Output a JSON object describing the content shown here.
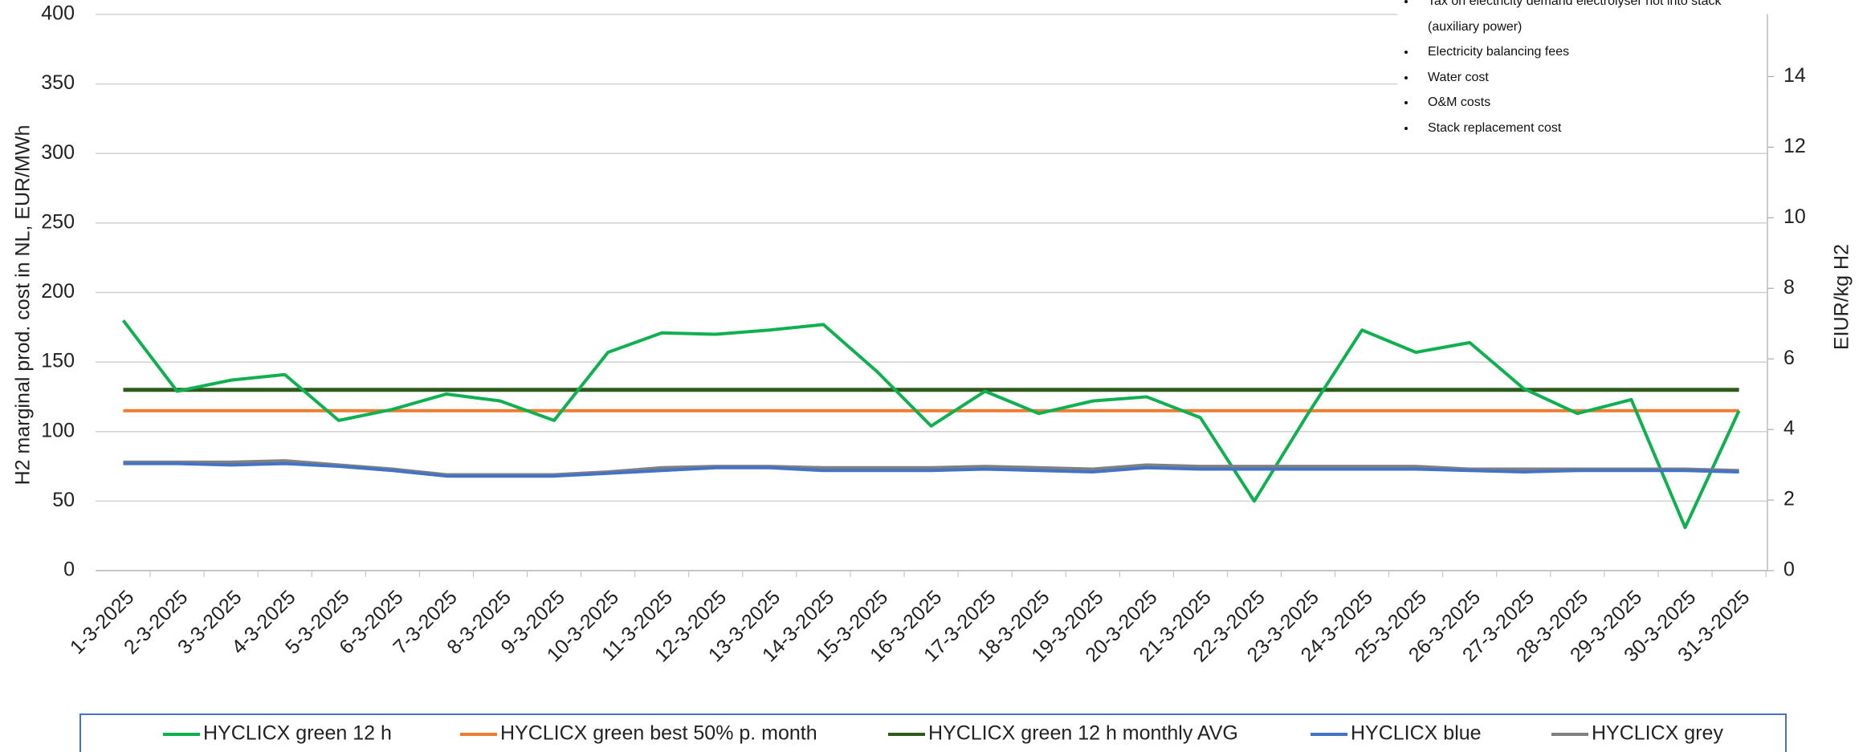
{
  "chart_data": {
    "type": "line",
    "y_label": "H2 marginal  prod. cost  in NL, EUR/MWh",
    "y2_label": "EIUR/kg H2",
    "categories": [
      "1-3-2025",
      "2-3-2025",
      "3-3-2025",
      "4-3-2025",
      "5-3-2025",
      "6-3-2025",
      "7-3-2025",
      "8-3-2025",
      "9-3-2025",
      "10-3-2025",
      "11-3-2025",
      "12-3-2025",
      "13-3-2025",
      "14-3-2025",
      "15-3-2025",
      "16-3-2025",
      "17-3-2025",
      "18-3-2025",
      "19-3-2025",
      "20-3-2025",
      "21-3-2025",
      "22-3-2025",
      "23-3-2025",
      "24-3-2025",
      "25-3-2025",
      "26-3-2025",
      "27-3-2025",
      "28-3-2025",
      "29-3-2025",
      "30-3-2025",
      "31-3-2025"
    ],
    "series": [
      {
        "name": "HYCLICX green 12 h",
        "color": "#10b050",
        "values": [
          180,
          129,
          137,
          141,
          108,
          116,
          127,
          122,
          108,
          157,
          171,
          170,
          173,
          177,
          143,
          104,
          129,
          113,
          122,
          125,
          110,
          50,
          113,
          173,
          157,
          164,
          131,
          113,
          123,
          31,
          115
        ]
      },
      {
        "name": "HYCLICX green best 50% p. month",
        "color": "#ed7d31",
        "values": [
          115,
          115,
          115,
          115,
          115,
          115,
          115,
          115,
          115,
          115,
          115,
          115,
          115,
          115,
          115,
          115,
          115,
          115,
          115,
          115,
          115,
          115,
          115,
          115,
          115,
          115,
          115,
          115,
          115,
          115,
          115
        ]
      },
      {
        "name": "HYCLICX green 12 h monthly AVG",
        "color": "#2e5a1c",
        "values": [
          130,
          130,
          130,
          130,
          130,
          130,
          130,
          130,
          130,
          130,
          130,
          130,
          130,
          130,
          130,
          130,
          130,
          130,
          130,
          130,
          130,
          130,
          130,
          130,
          130,
          130,
          130,
          130,
          130,
          130,
          130
        ]
      },
      {
        "name": "HYCLICX blue",
        "color": "#4472c4",
        "values": [
          77,
          77,
          76,
          77,
          75,
          72,
          68,
          68,
          68,
          70,
          72,
          74,
          74,
          72,
          72,
          72,
          73,
          72,
          71,
          74,
          73,
          73,
          73,
          73,
          73,
          72,
          71,
          72,
          72,
          72,
          71
        ]
      },
      {
        "name": "HYCLICX grey",
        "color": "#808080",
        "values": [
          78,
          78,
          78,
          79,
          76,
          73,
          69,
          69,
          69,
          71,
          74,
          75,
          75,
          74,
          74,
          74,
          75,
          74,
          73,
          76,
          75,
          75,
          75,
          75,
          75,
          73,
          73,
          73,
          73,
          73,
          72
        ]
      }
    ],
    "ylim": [
      0,
      400
    ],
    "yticks": [
      0,
      50,
      100,
      150,
      200,
      250,
      300,
      350,
      400
    ],
    "y2lim": [
      0,
      15.76
    ],
    "y2ticks": [
      0,
      2,
      4,
      6,
      8,
      10,
      12,
      14
    ],
    "grid": true,
    "legend": "bottom",
    "notes": [
      "Tax on electricity demand electrolyser not into stack (auxiliary power)",
      "Electricity balancing fees",
      "Water cost",
      "O&M costs",
      "Stack replacement cost"
    ]
  }
}
